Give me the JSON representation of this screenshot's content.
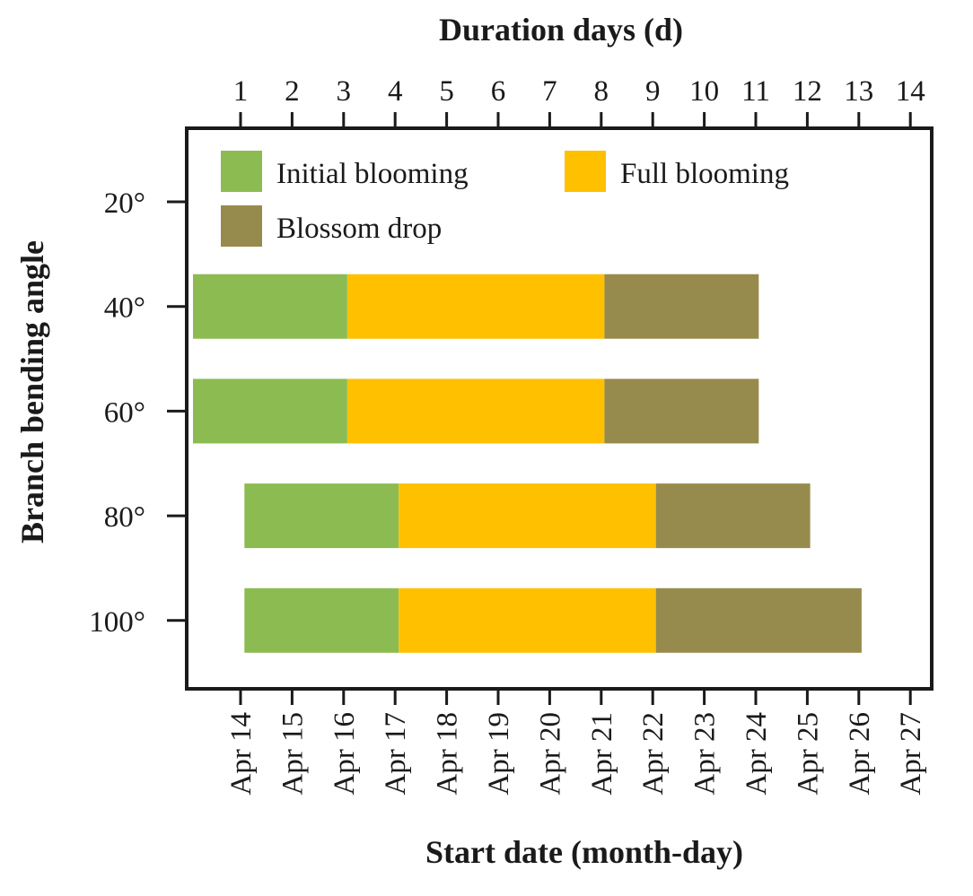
{
  "chart_data": {
    "type": "bar",
    "orientation": "horizontal",
    "stacked": true,
    "title_top": "Duration days (d)",
    "xlabel": "Start date (month-day)",
    "ylabel": "Branch bending angle",
    "top_axis_ticks": [
      "1",
      "2",
      "3",
      "4",
      "5",
      "6",
      "7",
      "8",
      "9",
      "10",
      "11",
      "12",
      "13",
      "14"
    ],
    "bottom_axis_ticks": [
      "Apr 14",
      "Apr 15",
      "Apr 16",
      "Apr 17",
      "Apr 18",
      "Apr 19",
      "Apr 20",
      "Apr 21",
      "Apr 22",
      "Apr 23",
      "Apr 24",
      "Apr 25",
      "Apr 26",
      "Apr 27"
    ],
    "categories": [
      "20°",
      "40°",
      "60°",
      "80°",
      "100°"
    ],
    "legend_position": "top-left inside",
    "grid": false,
    "series": [
      {
        "name": "Initial blooming",
        "color": "#8CBB52",
        "start": [
          null,
          "Apr 13",
          "Apr 13",
          "Apr 14",
          "Apr 14"
        ],
        "duration_days": [
          null,
          3,
          3,
          3,
          3
        ]
      },
      {
        "name": "Full blooming",
        "color": "#FFC000",
        "start": [
          null,
          "Apr 16",
          "Apr 16",
          "Apr 17",
          "Apr 17"
        ],
        "duration_days": [
          null,
          5,
          5,
          5,
          5
        ]
      },
      {
        "name": "Blossom drop",
        "color": "#978A4D",
        "start": [
          null,
          "Apr 21",
          "Apr 21",
          "Apr 22",
          "Apr 22"
        ],
        "duration_days": [
          null,
          3,
          3,
          3,
          4
        ]
      }
    ]
  }
}
